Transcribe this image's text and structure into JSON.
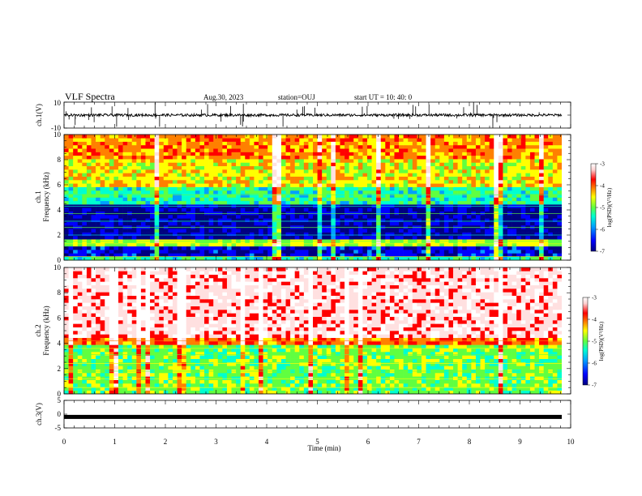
{
  "figure": {
    "title": "VLF Spectra",
    "date": "Aug.30, 2023",
    "station": "station=OUJ",
    "start_ut": "start  UT =   10: 40: 0"
  },
  "colors": {
    "scale": [
      "#000080",
      "#0000ff",
      "#00a0ff",
      "#00ffd0",
      "#60ff40",
      "#ffff00",
      "#ff8000",
      "#ff0000",
      "#ffe0e0",
      "#ffffff"
    ]
  },
  "chart_data": [
    {
      "type": "line",
      "name": "ch1-waveform",
      "ylabel": "ch.1(V)",
      "ylim": [
        -10,
        10
      ],
      "yticks": [
        -10,
        10
      ],
      "xlim": [
        0,
        10
      ],
      "baseline": 0,
      "envelope_approx": [
        -1,
        1
      ],
      "spikes_approx": [
        -10,
        10
      ]
    },
    {
      "type": "heatmap",
      "name": "ch1-spectrogram",
      "ylabel_lines": [
        "ch.1",
        "Frequency (kHz)"
      ],
      "ylim": [
        0,
        10
      ],
      "yticks": [
        0,
        2,
        4,
        6,
        8,
        10
      ],
      "xlim": [
        0,
        10
      ],
      "colorbar": {
        "label": "log(PSD)(V²/Hz)",
        "range": [
          -7,
          -3
        ],
        "ticks": [
          -7,
          -6,
          -5,
          -4,
          -3
        ]
      },
      "bands_logpsd_approx": [
        {
          "f": [
            0.0,
            0.4
          ],
          "value": -5.5
        },
        {
          "f": [
            0.4,
            1.0
          ],
          "value": -6.5
        },
        {
          "f": [
            1.0,
            1.6
          ],
          "value": -5.0
        },
        {
          "f": [
            1.6,
            4.4
          ],
          "value": -6.7
        },
        {
          "f": [
            4.4,
            5.8
          ],
          "value": -5.5
        },
        {
          "f": [
            5.8,
            8.0
          ],
          "value": -4.8
        },
        {
          "f": [
            8.0,
            10.0
          ],
          "value": -4.4
        }
      ]
    },
    {
      "type": "heatmap",
      "name": "ch2-spectrogram",
      "ylabel_lines": [
        "ch.2",
        "Frequency (kHz)"
      ],
      "ylim": [
        0,
        10
      ],
      "yticks": [
        0,
        2,
        4,
        6,
        8,
        10
      ],
      "xlim": [
        0,
        10
      ],
      "colorbar": {
        "label": "log(PSD)(V²/Hz)",
        "range": [
          -7,
          -3
        ],
        "ticks": [
          -7,
          -6,
          -5,
          -4,
          -3
        ]
      },
      "bands_logpsd_approx": [
        {
          "f": [
            0.0,
            4.0
          ],
          "value": -5.2
        },
        {
          "f": [
            4.0,
            4.5
          ],
          "value": -4.3
        },
        {
          "f": [
            4.5,
            10.0
          ],
          "value": -3.6
        }
      ]
    },
    {
      "type": "line",
      "name": "ch3-waveform",
      "ylabel": "ch.3(V)",
      "ylim": [
        -5,
        5
      ],
      "yticks": [
        -5,
        0,
        5
      ],
      "xlim": [
        0,
        10
      ],
      "value_approx": -1
    }
  ],
  "xaxis": {
    "label": "Time  (min)",
    "ticks": [
      0,
      1,
      2,
      3,
      4,
      5,
      6,
      7,
      8,
      9,
      10
    ]
  }
}
